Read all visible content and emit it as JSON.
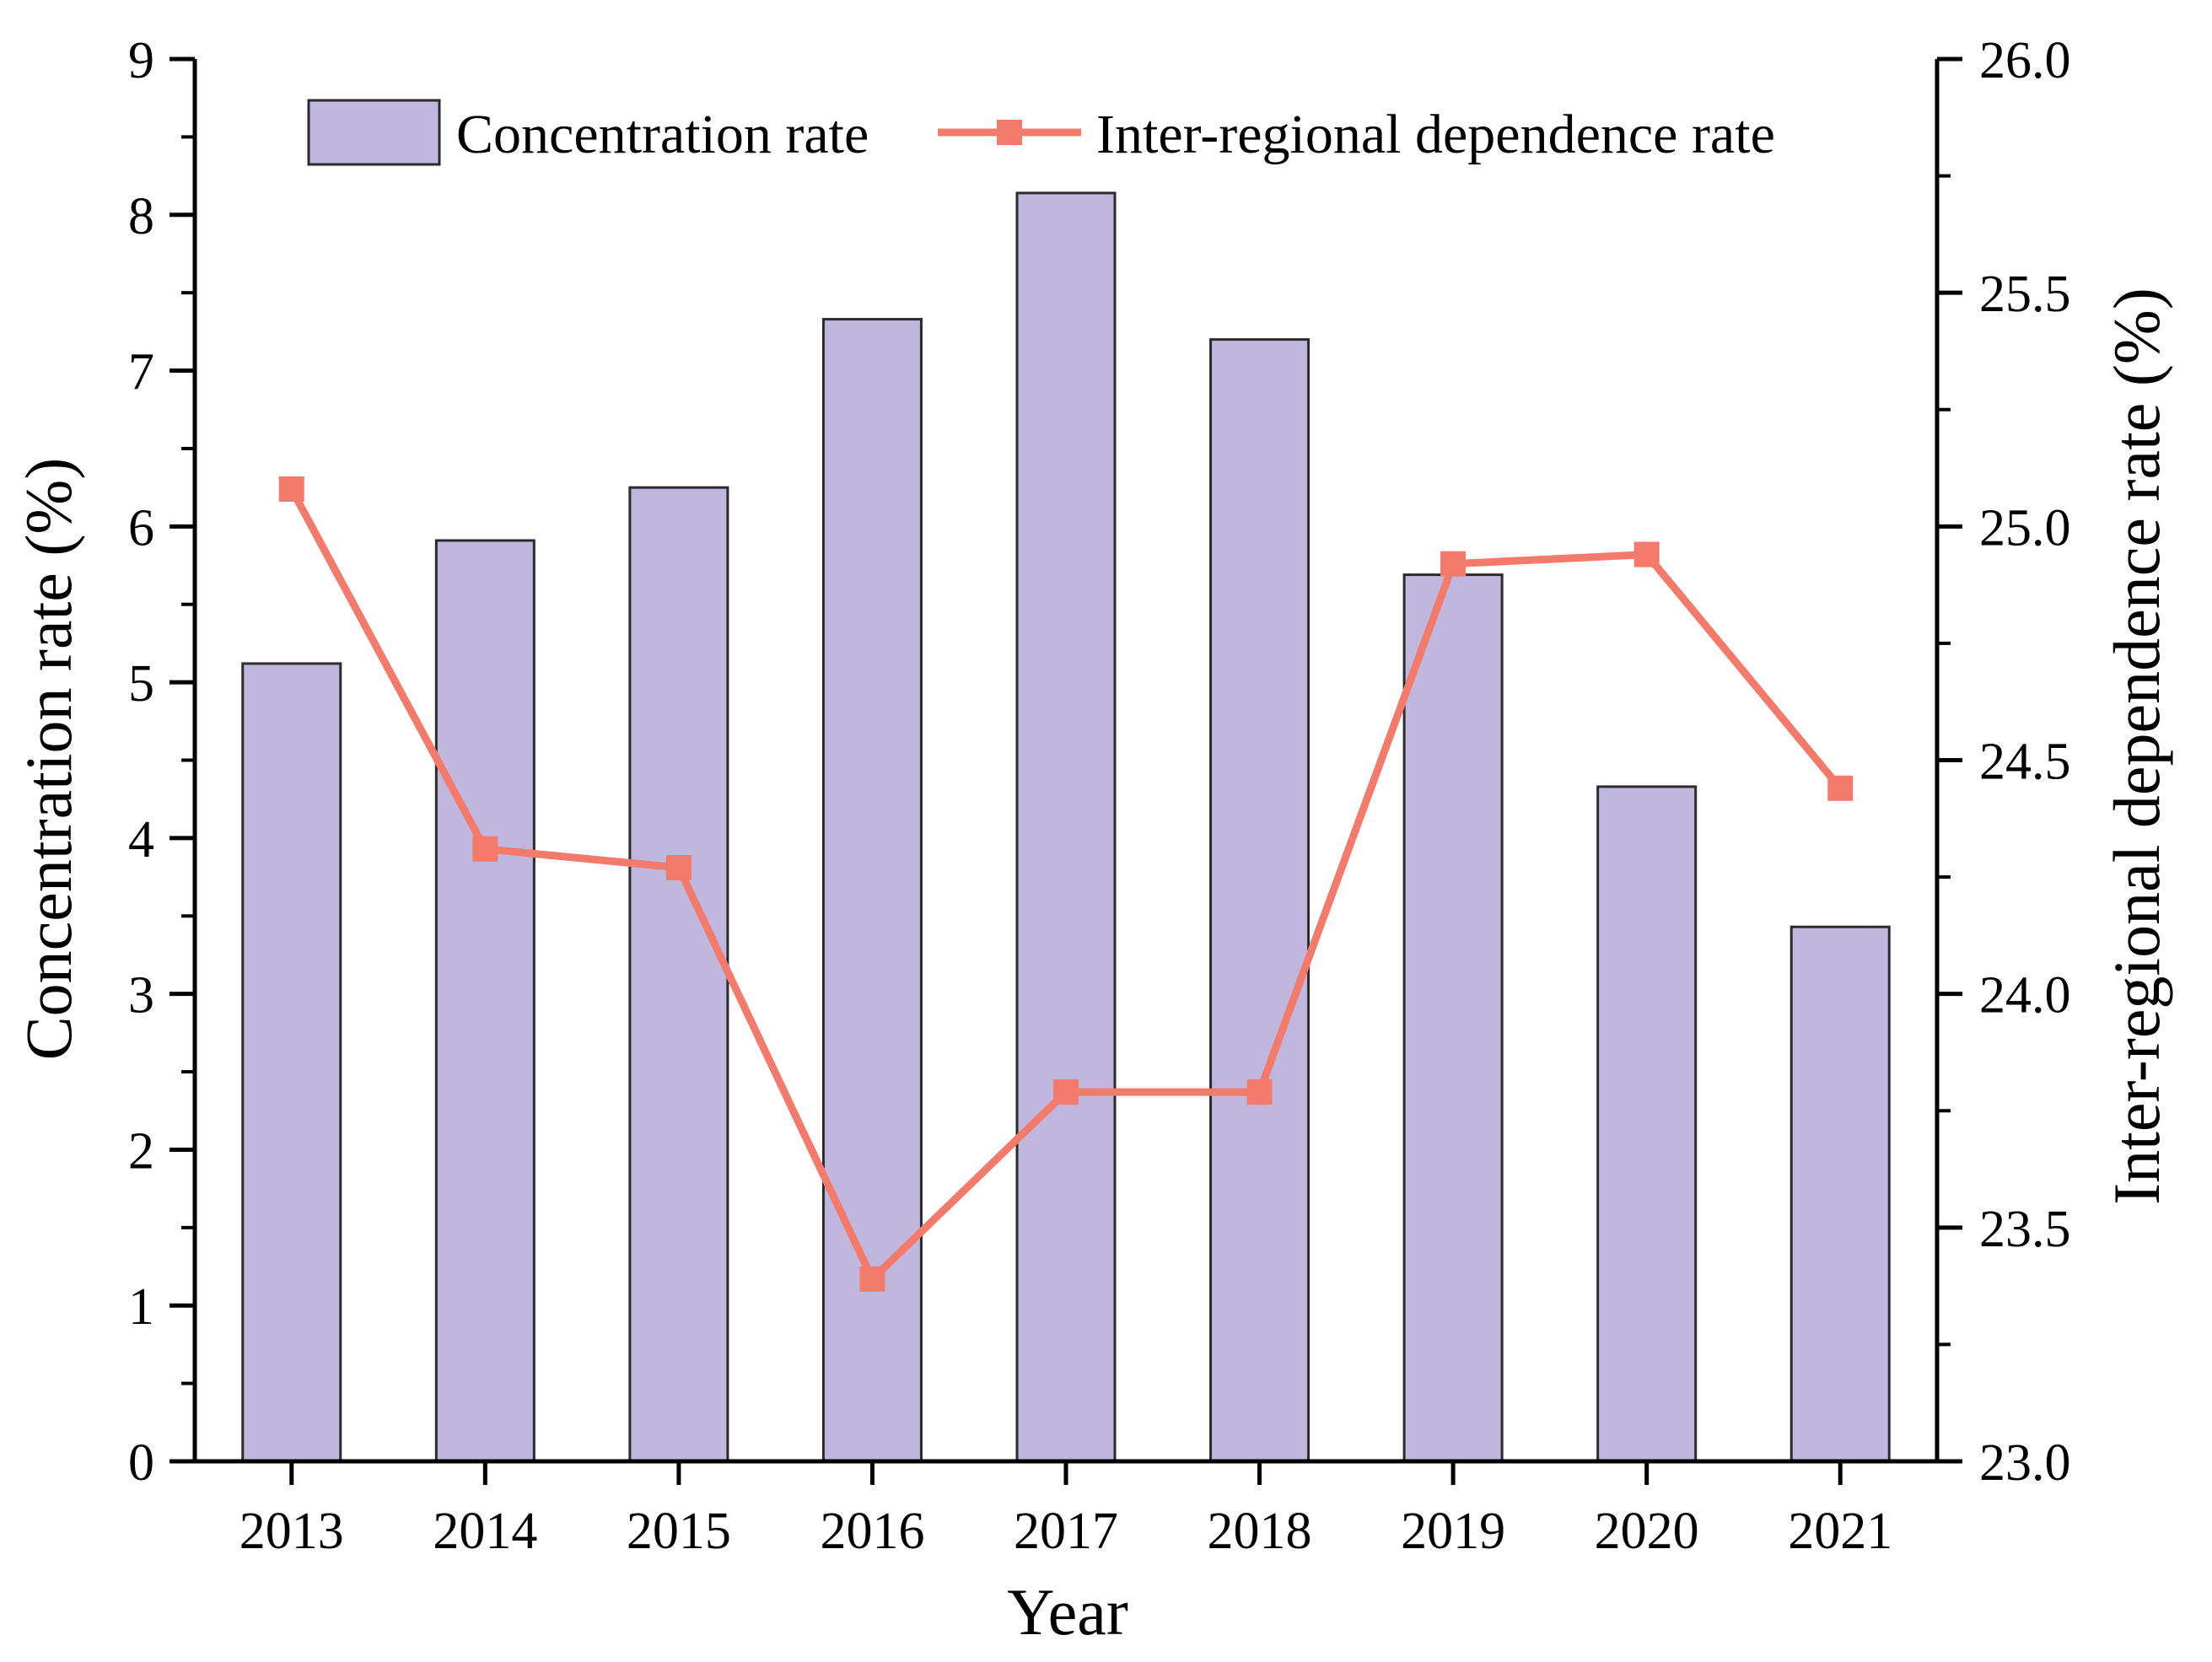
{
  "chart_data": {
    "type": "bar",
    "categories": [
      "2013",
      "2014",
      "2015",
      "2016",
      "2017",
      "2018",
      "2019",
      "2020",
      "2021"
    ],
    "series": [
      {
        "name": "Concentration rate",
        "type": "bar",
        "axis": "left",
        "values": [
          5.12,
          5.91,
          6.25,
          7.33,
          8.14,
          7.2,
          5.69,
          4.33,
          3.43
        ]
      },
      {
        "name": "Inter-regional dependence rate",
        "type": "line",
        "axis": "right",
        "values": [
          25.08,
          24.31,
          24.27,
          23.39,
          23.79,
          23.79,
          24.92,
          24.94,
          24.44
        ]
      }
    ],
    "xlabel": "Year",
    "ylabel": "Concentration rate (%)",
    "y2label": "Inter-regional dependence rate (%)",
    "ylim": [
      0,
      9
    ],
    "y2lim": [
      23.0,
      26.0
    ],
    "yticks": [
      "0",
      "1",
      "2",
      "3",
      "4",
      "5",
      "6",
      "7",
      "8",
      "9"
    ],
    "y2ticks": [
      "23.0",
      "23.5",
      "24.0",
      "24.5",
      "25.0",
      "25.5",
      "26.0"
    ],
    "legend_position": "top",
    "grid": false,
    "colors": {
      "bar_fill": "#bfb7dd",
      "bar_stroke": "#2b2b2b",
      "line": "#f47a6b",
      "axis": "#000000"
    }
  }
}
